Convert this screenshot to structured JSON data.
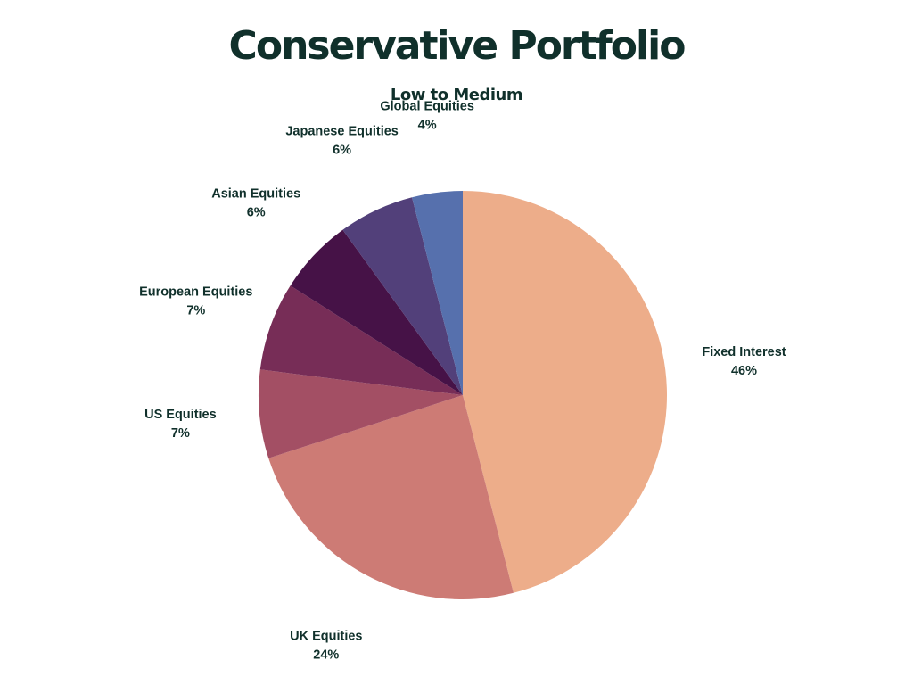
{
  "chart_data": {
    "type": "pie",
    "title": "Conservative Portfolio",
    "subtitle": "Low to Medium",
    "slices": [
      {
        "label": "Fixed Interest",
        "value": 46,
        "value_label": "46%",
        "color": "#edad8a"
      },
      {
        "label": "UK Equities",
        "value": 24,
        "value_label": "24%",
        "color": "#cd7b75"
      },
      {
        "label": "US Equities",
        "value": 7,
        "value_label": "7%",
        "color": "#a34f64"
      },
      {
        "label": "European Equities",
        "value": 7,
        "value_label": "7%",
        "color": "#772d57"
      },
      {
        "label": "Asian Equities",
        "value": 6,
        "value_label": "6%",
        "color": "#461247"
      },
      {
        "label": "Japanese Equities",
        "value": 6,
        "value_label": "6%",
        "color": "#52407a"
      },
      {
        "label": "Global Equities",
        "value": 4,
        "value_label": "4%",
        "color": "#5670ad"
      }
    ]
  }
}
